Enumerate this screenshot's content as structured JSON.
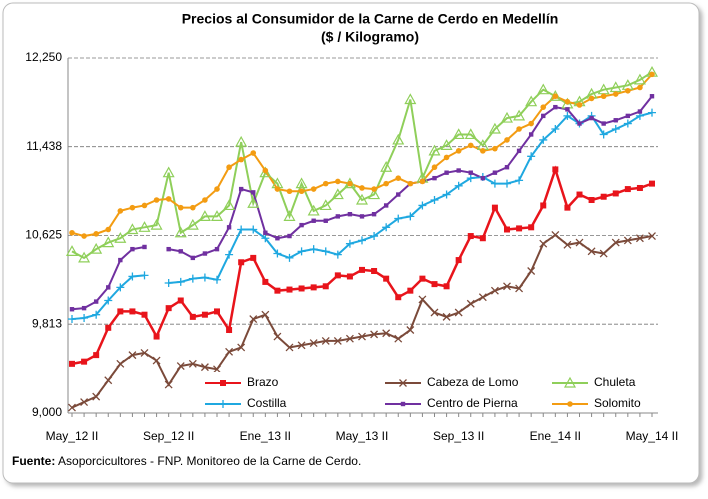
{
  "chart_data": {
    "type": "line",
    "title": "Precios al Consumidor de la Carne de Cerdo en Medellín",
    "subtitle": "($ / Kilogramo)",
    "source_label": "Fuente:",
    "source_text": "Asoporcicultores - FNP.  Monitoreo de la Carne de Cerdo.",
    "categories": [
      "May_12 II",
      null,
      null,
      null,
      null,
      null,
      null,
      null,
      "Sep_12 II",
      null,
      null,
      null,
      null,
      null,
      null,
      null,
      "Ene_13 II",
      null,
      null,
      null,
      null,
      null,
      null,
      null,
      "May_13 II",
      null,
      null,
      null,
      null,
      null,
      null,
      null,
      "Sep_13 II",
      null,
      null,
      null,
      null,
      null,
      null,
      null,
      "Ene_14 II",
      null,
      null,
      null,
      null,
      null,
      null,
      null,
      "May_14 II"
    ],
    "ylim": [
      9000,
      12250
    ],
    "yticks": [
      {
        "value": 9000,
        "label": "9,000"
      },
      {
        "value": 9813,
        "label": "9,813"
      },
      {
        "value": 10625,
        "label": "10,625"
      },
      {
        "value": 11438,
        "label": "11,438"
      },
      {
        "value": 12250,
        "label": "12,250"
      }
    ],
    "grid": true,
    "legend": "bottom",
    "series": [
      {
        "name": "Brazo",
        "color": "#e8141b",
        "marker": "square",
        "values": [
          9450,
          9470,
          9530,
          9780,
          9930,
          9930,
          9900,
          9700,
          9960,
          10030,
          9880,
          9900,
          9930,
          9760,
          10380,
          10420,
          10200,
          10120,
          10130,
          10140,
          10150,
          10160,
          10260,
          10250,
          10310,
          10300,
          10230,
          10060,
          10120,
          10230,
          10180,
          10160,
          10400,
          10620,
          10600,
          10880,
          10680,
          10690,
          10700,
          10900,
          11230,
          10880,
          11000,
          10950,
          10980,
          11010,
          11050,
          11060,
          11100
        ]
      },
      {
        "name": "Cabeza de Lomo",
        "color": "#7b4a3a",
        "marker": "x",
        "values": [
          9050,
          9100,
          9150,
          9300,
          9450,
          9530,
          9550,
          9480,
          9260,
          9430,
          9450,
          9420,
          9400,
          9560,
          9600,
          9860,
          9900,
          9700,
          9600,
          9620,
          9640,
          9660,
          9660,
          9680,
          9700,
          9720,
          9730,
          9680,
          9760,
          10040,
          9920,
          9880,
          9920,
          10000,
          10060,
          10120,
          10160,
          10140,
          10300,
          10550,
          10630,
          10540,
          10560,
          10480,
          10460,
          10560,
          10580,
          10600,
          10620
        ]
      },
      {
        "name": "Chuleta",
        "color": "#8fcf5a",
        "marker": "triangle",
        "values": [
          10480,
          10420,
          10500,
          10560,
          10600,
          10680,
          10700,
          10720,
          11200,
          10650,
          10720,
          10800,
          10800,
          10900,
          11480,
          10920,
          11200,
          11100,
          10800,
          11100,
          10850,
          10900,
          11000,
          11100,
          10950,
          11000,
          11250,
          11500,
          11870,
          11150,
          11400,
          11450,
          11550,
          11550,
          11450,
          11600,
          11700,
          11720,
          11850,
          11960,
          11900,
          11830,
          11850,
          11920,
          11960,
          11980,
          12000,
          12050,
          12120
        ]
      },
      {
        "name": "Costilla",
        "color": "#1fa8e0",
        "marker": "plus",
        "values": [
          9860,
          9870,
          9900,
          10030,
          10150,
          10250,
          10260,
          null,
          10190,
          10200,
          10230,
          10240,
          10220,
          10450,
          10680,
          10680,
          10600,
          10460,
          10420,
          10480,
          10500,
          10480,
          10450,
          10550,
          10580,
          10620,
          10700,
          10780,
          10800,
          10900,
          10950,
          11000,
          11080,
          11150,
          11160,
          11100,
          11100,
          11130,
          11350,
          11500,
          11600,
          11720,
          11650,
          11720,
          11550,
          11600,
          11650,
          11720,
          11750
        ]
      },
      {
        "name": "Centro de Pierna",
        "color": "#7030a0",
        "marker": "small-square",
        "values": [
          9950,
          9960,
          10020,
          10150,
          10400,
          10500,
          10520,
          null,
          10500,
          10480,
          10420,
          10460,
          10500,
          10700,
          11050,
          11020,
          10650,
          10600,
          10620,
          10720,
          10760,
          10760,
          10800,
          10820,
          10800,
          10820,
          10900,
          11000,
          11100,
          11120,
          11150,
          11200,
          11220,
          11200,
          11150,
          11200,
          11250,
          11400,
          11550,
          11720,
          11800,
          11780,
          11650,
          11700,
          11650,
          11680,
          11720,
          11760,
          11900
        ]
      },
      {
        "name": "Solomito",
        "color": "#f39c12",
        "marker": "circle",
        "values": [
          10650,
          10620,
          10640,
          10680,
          10850,
          10880,
          10900,
          10950,
          10960,
          10880,
          10880,
          10950,
          11050,
          11250,
          11320,
          11380,
          11220,
          11050,
          11030,
          11030,
          11050,
          11100,
          11120,
          11100,
          11060,
          11050,
          11100,
          11150,
          11100,
          11120,
          11250,
          11340,
          11400,
          11450,
          11400,
          11420,
          11500,
          11600,
          11650,
          11800,
          11900,
          11850,
          11820,
          11880,
          11900,
          11920,
          11950,
          11980,
          12100
        ]
      }
    ]
  }
}
